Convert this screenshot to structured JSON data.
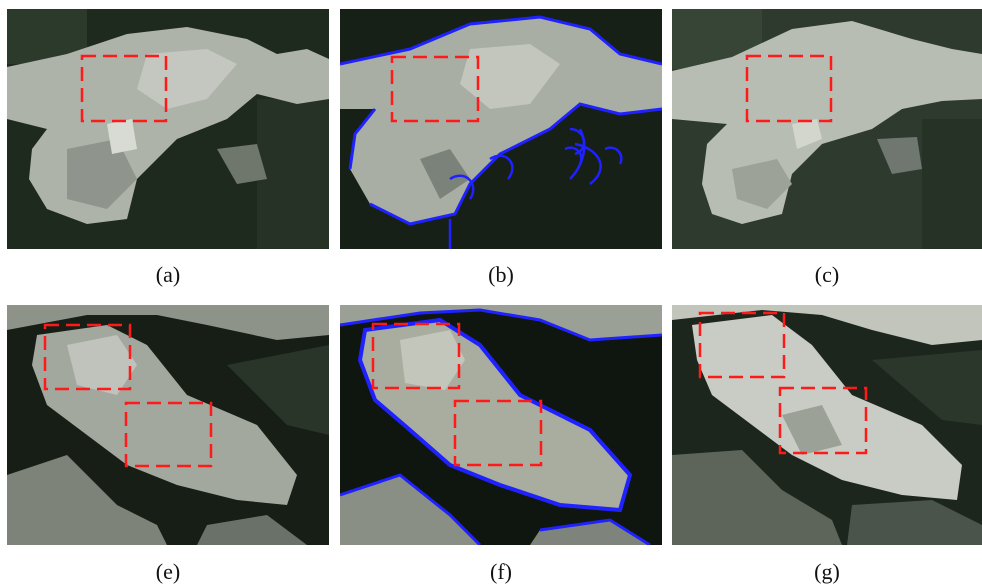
{
  "panels": [
    {
      "id": "a",
      "label": "(a)",
      "style": "superpixel",
      "boxes": 1
    },
    {
      "id": "b",
      "label": "(b)",
      "style": "contour",
      "boxes": 1
    },
    {
      "id": "c",
      "label": "(c)",
      "style": "superpixel",
      "boxes": 1
    },
    {
      "id": "e",
      "label": "(e)",
      "style": "superpixel",
      "boxes": 2
    },
    {
      "id": "f",
      "label": "(f)",
      "style": "contour",
      "boxes": 2
    },
    {
      "id": "g",
      "label": "(g)",
      "style": "superpixel",
      "boxes": 2
    }
  ],
  "colors": {
    "dark_background": "#1f2a1f",
    "light_region": "#b9beb6",
    "contour": "#1f22ff",
    "box_outline": "#ff1a1a"
  }
}
